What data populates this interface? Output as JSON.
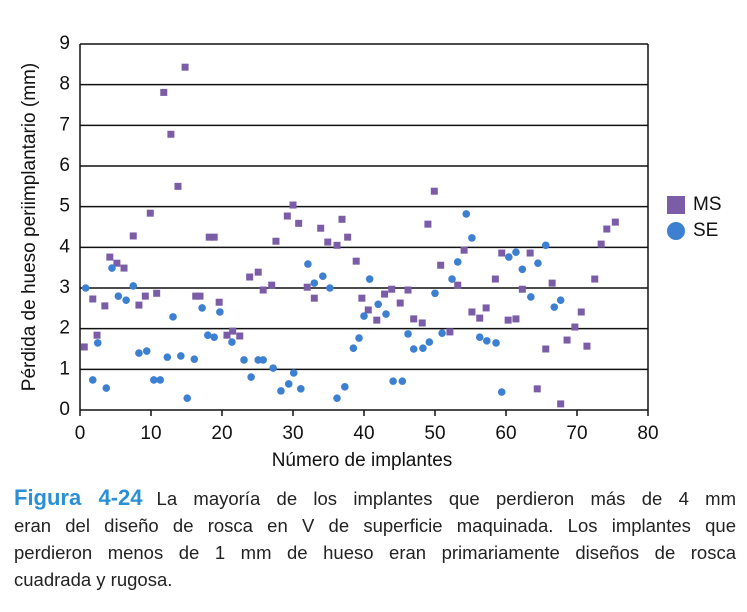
{
  "chart_data": {
    "type": "scatter",
    "xlabel": "Número de implantes",
    "ylabel": "Pérdida de hueso periimplantario (mm)",
    "xlim": [
      0,
      80
    ],
    "xticks": [
      0,
      10,
      20,
      30,
      40,
      50,
      60,
      70,
      80
    ],
    "ylim": [
      0,
      9
    ],
    "yticks": [
      0,
      1,
      2,
      3,
      4,
      5,
      6,
      7,
      8,
      9
    ],
    "grid": true,
    "legend": "right",
    "series": [
      {
        "name": "MS",
        "color": "#7b5ca6",
        "marker": "square",
        "x": [
          0.6,
          1.8,
          2.4,
          3.5,
          4.2,
          5.2,
          6.2,
          7.5,
          8.3,
          9.2,
          9.9,
          10.8,
          11.8,
          12.8,
          13.8,
          14.8,
          16.3,
          16.9,
          18.2,
          18.9,
          19.6,
          20.7,
          21.5,
          22.5,
          23.9,
          25.1,
          25.8,
          27.0,
          27.6,
          29.2,
          30.0,
          30.8,
          32.0,
          33.0,
          33.9,
          34.9,
          36.2,
          36.9,
          37.7,
          38.9,
          39.7,
          40.6,
          41.8,
          42.9,
          43.9,
          45.1,
          46.2,
          47.0,
          48.2,
          49.0,
          49.9,
          50.8,
          52.1,
          53.2,
          54.1,
          55.2,
          56.3,
          57.2,
          58.5,
          59.4,
          60.3,
          61.4,
          62.3,
          63.4,
          64.4,
          65.6,
          66.5,
          67.7,
          68.6,
          69.7,
          70.6,
          71.4,
          72.5,
          73.4,
          74.2,
          75.4
        ],
        "values": [
          1.55,
          2.73,
          1.84,
          2.56,
          3.76,
          3.61,
          3.49,
          4.28,
          2.58,
          2.8,
          4.84,
          2.87,
          7.81,
          6.78,
          5.5,
          8.43,
          2.8,
          2.8,
          4.25,
          4.25,
          2.65,
          1.84,
          1.94,
          1.82,
          3.27,
          3.39,
          2.95,
          3.07,
          4.15,
          4.77,
          5.04,
          4.59,
          3.02,
          2.75,
          4.47,
          4.13,
          4.05,
          4.69,
          4.25,
          3.66,
          2.75,
          2.46,
          2.21,
          2.85,
          2.97,
          2.63,
          2.95,
          2.24,
          2.14,
          4.57,
          5.38,
          3.56,
          1.92,
          3.07,
          3.93,
          2.41,
          2.26,
          2.51,
          3.22,
          3.86,
          2.21,
          2.24,
          2.97,
          3.86,
          0.52,
          1.5,
          3.12,
          0.15,
          1.72,
          2.04,
          2.41,
          1.57,
          3.22,
          4.08,
          4.45,
          4.62
        ]
      },
      {
        "name": "SE",
        "color": "#3d80d2",
        "marker": "circle",
        "x": [
          0.8,
          1.8,
          2.5,
          3.7,
          4.5,
          5.4,
          6.5,
          7.5,
          8.3,
          9.4,
          10.4,
          11.3,
          12.3,
          13.1,
          14.2,
          15.1,
          16.1,
          17.2,
          18.0,
          18.9,
          19.7,
          21.4,
          23.1,
          24.1,
          25.1,
          25.8,
          27.2,
          28.3,
          29.4,
          30.1,
          31.1,
          32.1,
          33.0,
          34.2,
          35.2,
          36.2,
          37.3,
          38.5,
          39.3,
          40.0,
          40.8,
          42.0,
          43.1,
          44.1,
          45.4,
          46.2,
          47.0,
          48.3,
          49.2,
          50.0,
          51.0,
          52.4,
          53.2,
          54.4,
          55.2,
          56.3,
          57.3,
          58.6,
          59.4,
          60.4,
          61.4,
          62.3,
          63.5,
          64.5,
          65.6,
          66.8,
          67.7
        ],
        "values": [
          3.0,
          0.74,
          1.65,
          0.54,
          3.49,
          2.8,
          2.7,
          3.05,
          1.4,
          1.45,
          0.74,
          0.74,
          1.3,
          2.29,
          1.33,
          0.29,
          1.25,
          2.51,
          1.84,
          1.79,
          2.41,
          1.67,
          1.23,
          0.81,
          1.23,
          1.23,
          1.03,
          0.47,
          0.64,
          0.91,
          0.52,
          3.59,
          3.12,
          3.29,
          3.0,
          0.29,
          0.57,
          1.52,
          1.77,
          2.31,
          3.22,
          2.6,
          2.36,
          0.71,
          0.71,
          1.87,
          1.5,
          1.52,
          1.67,
          2.87,
          1.89,
          3.22,
          3.64,
          4.82,
          4.23,
          1.79,
          1.7,
          1.65,
          0.44,
          3.76,
          3.88,
          3.46,
          2.78,
          3.61,
          4.05,
          2.53,
          2.7
        ]
      }
    ]
  },
  "caption": {
    "label": "Figura 4-24",
    "lines": [
      "La mayoría de los implantes que perdieron más de 4 mm",
      "eran del diseño de rosca en V de superficie maquinada. Los implantes que",
      "perdieron menos de 1 mm de hueso eran primariamente diseños de rosca",
      "cuadrada y rugosa."
    ]
  }
}
